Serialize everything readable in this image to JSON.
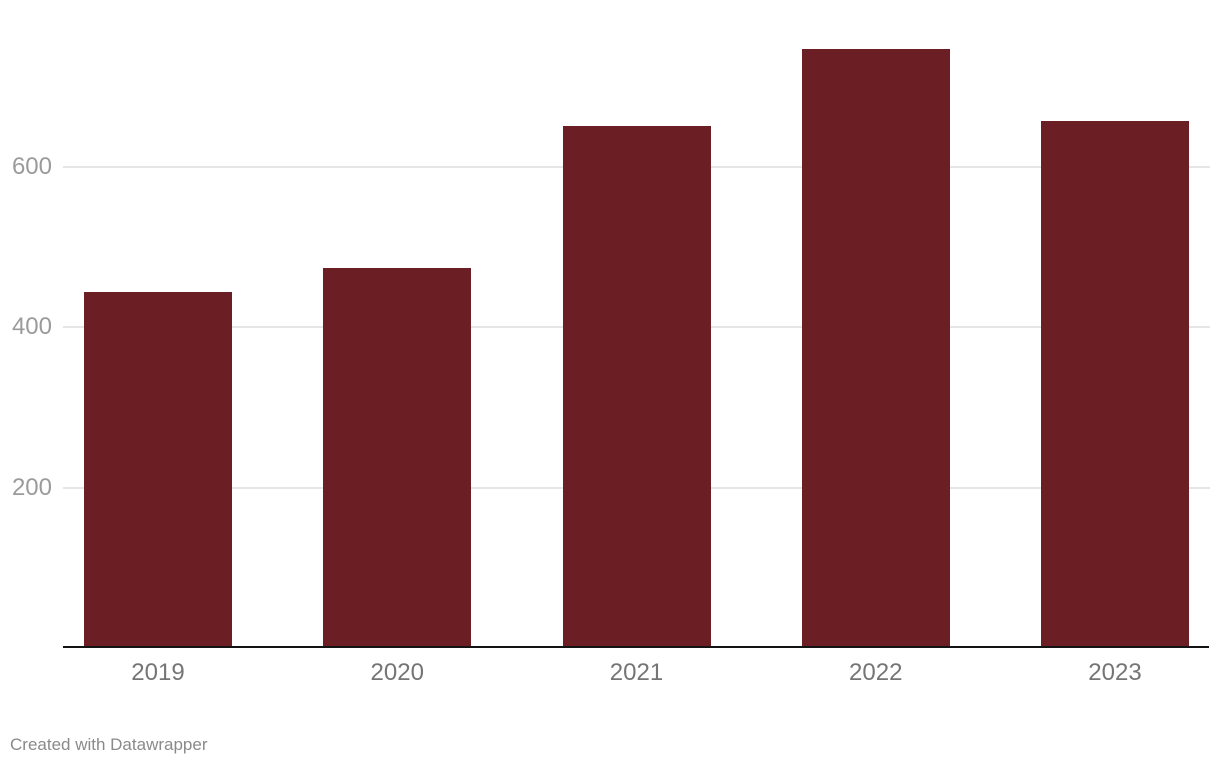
{
  "chart_data": {
    "type": "bar",
    "title": "",
    "categories": [
      "2019",
      "2020",
      "2021",
      "2022",
      "2023"
    ],
    "values": [
      443,
      473,
      650,
      747,
      657
    ],
    "xlabel": "",
    "ylabel": "",
    "yticks": [
      200,
      400,
      600
    ],
    "ylim": [
      0,
      805
    ],
    "grid": true,
    "legend": "none",
    "colors": {
      "bar": "#6b1e24",
      "gridline": "#e6e6e6",
      "axis_line": "#141414",
      "y_tick_label": "#9b9b9b",
      "x_tick_label": "#757575"
    }
  },
  "footer": {
    "credit": "Created with Datawrapper",
    "color": "#8a8a8a"
  }
}
